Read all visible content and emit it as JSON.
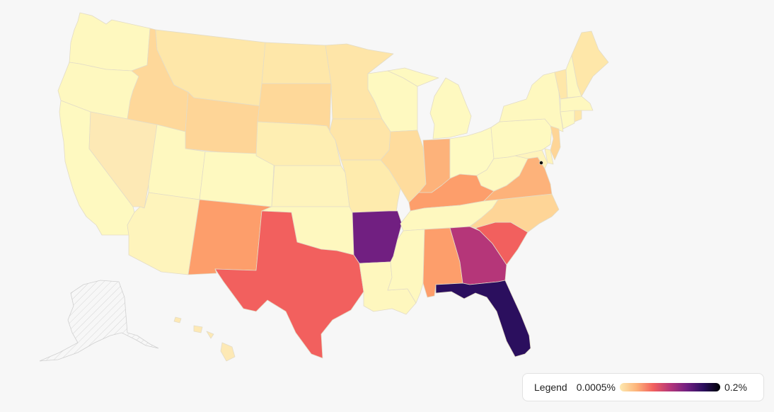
{
  "legend": {
    "title": "Legend",
    "min_label": "0.0005%",
    "max_label": "0.2%",
    "colors": [
      "#fde9b0",
      "#fdb47a",
      "#f2605e",
      "#b53679",
      "#711f81",
      "#2b0f5e",
      "#000004"
    ]
  },
  "colors": {
    "background": "#f7f7f7",
    "no_data_fill": "#f2f2f2",
    "border": "#e3dcc7"
  },
  "regions": [
    {
      "name": "Washington",
      "value_level": "very-low",
      "fill": "#fef8bf"
    },
    {
      "name": "Oregon",
      "value_level": "very-low",
      "fill": "#fef8bf"
    },
    {
      "name": "California",
      "value_level": "very-low",
      "fill": "#fef9c0"
    },
    {
      "name": "Idaho",
      "value_level": "low",
      "fill": "#fed89a"
    },
    {
      "name": "Nevada",
      "value_level": "low",
      "fill": "#fde9b5"
    },
    {
      "name": "Utah",
      "value_level": "very-low",
      "fill": "#fef8bf"
    },
    {
      "name": "Arizona",
      "value_level": "very-low",
      "fill": "#fef4bc"
    },
    {
      "name": "Montana",
      "value_level": "low",
      "fill": "#fee7a9"
    },
    {
      "name": "Wyoming",
      "value_level": "low",
      "fill": "#fed597"
    },
    {
      "name": "Colorado",
      "value_level": "very-low",
      "fill": "#fef9c0"
    },
    {
      "name": "New Mexico",
      "value_level": "medium",
      "fill": "#fd9e6b"
    },
    {
      "name": "North Dakota",
      "value_level": "low",
      "fill": "#fee7a9"
    },
    {
      "name": "South Dakota",
      "value_level": "low",
      "fill": "#fed899"
    },
    {
      "name": "Nebraska",
      "value_level": "low",
      "fill": "#feeeb2"
    },
    {
      "name": "Kansas",
      "value_level": "very-low",
      "fill": "#fef4bc"
    },
    {
      "name": "Oklahoma",
      "value_level": "very-low",
      "fill": "#fef8bf"
    },
    {
      "name": "Texas",
      "value_level": "high",
      "fill": "#f2605e"
    },
    {
      "name": "Minnesota",
      "value_level": "low",
      "fill": "#fee5a8"
    },
    {
      "name": "Iowa",
      "value_level": "low",
      "fill": "#fee5a8"
    },
    {
      "name": "Missouri",
      "value_level": "low",
      "fill": "#feebad"
    },
    {
      "name": "Arkansas",
      "value_level": "very-high",
      "fill": "#711f81"
    },
    {
      "name": "Louisiana",
      "value_level": "very-low",
      "fill": "#fef7be"
    },
    {
      "name": "Wisconsin",
      "value_level": "very-low",
      "fill": "#fef9c0"
    },
    {
      "name": "Illinois",
      "value_level": "low",
      "fill": "#fedc9d"
    },
    {
      "name": "Michigan",
      "value_level": "very-low",
      "fill": "#fef9c0"
    },
    {
      "name": "Indiana",
      "value_level": "medium",
      "fill": "#fdb27a"
    },
    {
      "name": "Ohio",
      "value_level": "very-low",
      "fill": "#fefac2"
    },
    {
      "name": "Kentucky",
      "value_level": "medium",
      "fill": "#fd9e6b"
    },
    {
      "name": "Tennessee",
      "value_level": "very-low",
      "fill": "#fef8bf"
    },
    {
      "name": "Mississippi",
      "value_level": "very-low",
      "fill": "#fef8bf"
    },
    {
      "name": "Alabama",
      "value_level": "medium",
      "fill": "#fd9e6b"
    },
    {
      "name": "Georgia",
      "value_level": "high",
      "fill": "#b53679"
    },
    {
      "name": "Florida",
      "value_level": "highest",
      "fill": "#2b0f5e"
    },
    {
      "name": "South Carolina",
      "value_level": "high",
      "fill": "#f2605e"
    },
    {
      "name": "North Carolina",
      "value_level": "low",
      "fill": "#fed597"
    },
    {
      "name": "Virginia",
      "value_level": "medium",
      "fill": "#fdb27a"
    },
    {
      "name": "West Virginia",
      "value_level": "very-low",
      "fill": "#fef8bf"
    },
    {
      "name": "Pennsylvania",
      "value_level": "very-low",
      "fill": "#fef9c0"
    },
    {
      "name": "New York",
      "value_level": "very-low",
      "fill": "#fef8bf"
    },
    {
      "name": "Maryland",
      "value_level": "very-low",
      "fill": "#fef4bc"
    },
    {
      "name": "Delaware",
      "value_level": "very-low",
      "fill": "#fef4bc"
    },
    {
      "name": "New Jersey",
      "value_level": "low",
      "fill": "#fed597"
    },
    {
      "name": "Vermont",
      "value_level": "low",
      "fill": "#fee7a9"
    },
    {
      "name": "New Hampshire",
      "value_level": "very-low",
      "fill": "#fef8bf"
    },
    {
      "name": "Maine",
      "value_level": "low",
      "fill": "#fee7a9"
    },
    {
      "name": "Massachusetts",
      "value_level": "very-low",
      "fill": "#fef8bf"
    },
    {
      "name": "Connecticut",
      "value_level": "very-low",
      "fill": "#fef9c0"
    },
    {
      "name": "Rhode Island",
      "value_level": "low",
      "fill": "#fee7a9"
    },
    {
      "name": "District of Columbia",
      "value_level": "highest",
      "fill": "#000004"
    },
    {
      "name": "Alaska",
      "value_level": "no-data",
      "fill": "#f2f2f2"
    },
    {
      "name": "Hawaii",
      "value_level": "low",
      "fill": "#fde9b5"
    }
  ]
}
